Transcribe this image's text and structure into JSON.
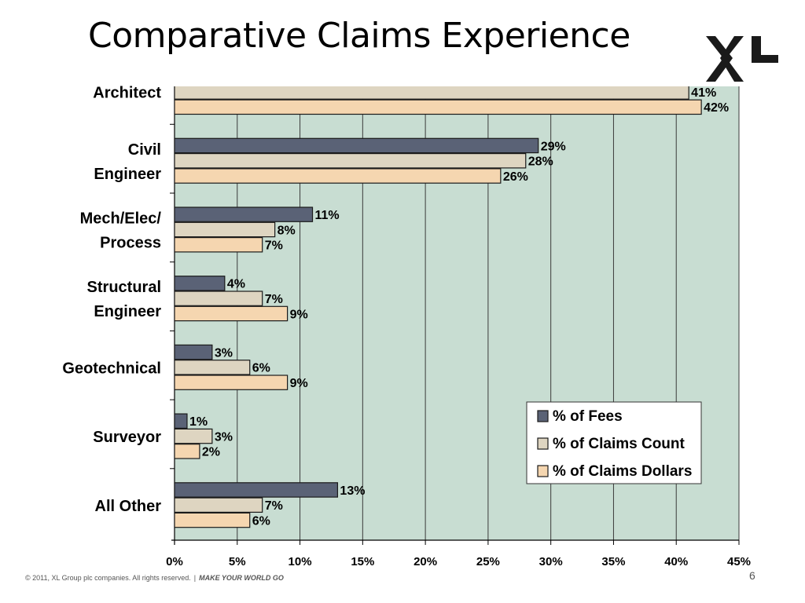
{
  "slide": {
    "title": "Comparative Claims Experience",
    "footer_copyright": "© 2011, XL Group plc companies. All rights reserved.",
    "footer_separator": "|",
    "footer_tagline": "MAKE YOUR WORLD GO",
    "page_number": "6",
    "logo_text": "XL"
  },
  "chart_data": {
    "type": "bar",
    "orientation": "horizontal",
    "title": "",
    "xlabel": "",
    "ylabel": "",
    "categories": [
      [
        "Architect"
      ],
      [
        "Civil",
        "Engineer"
      ],
      [
        "Mech/Elec/",
        "Process"
      ],
      [
        "Structural",
        "Engineer"
      ],
      [
        "Geotechnical"
      ],
      [
        "Surveyor"
      ],
      [
        "All Other"
      ]
    ],
    "series": [
      {
        "name": "% of Fees",
        "color": "#5a6276",
        "values": [
          null,
          29,
          11,
          4,
          3,
          1,
          13
        ]
      },
      {
        "name": "% of Claims Count",
        "color": "#ded5c1",
        "values": [
          41,
          28,
          8,
          7,
          6,
          3,
          7
        ]
      },
      {
        "name": "% of Claims Dollars",
        "color": "#f5d6b0",
        "values": [
          42,
          26,
          7,
          9,
          9,
          2,
          6
        ]
      }
    ],
    "value_suffix": "%",
    "xlim": [
      0,
      45
    ],
    "xticks": [
      0,
      5,
      10,
      15,
      20,
      25,
      30,
      35,
      40,
      45
    ],
    "xtick_labels": [
      "0%",
      "5%",
      "10%",
      "15%",
      "20%",
      "25%",
      "30%",
      "35%",
      "40%",
      "45%"
    ],
    "grid": "vertical",
    "legend_position": "bottom-right",
    "plot_background": "#c8ddd2"
  }
}
